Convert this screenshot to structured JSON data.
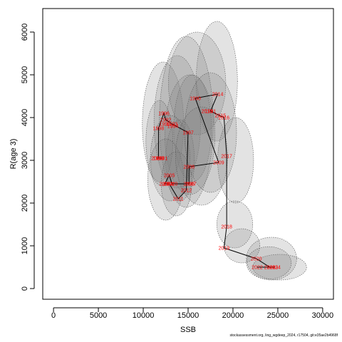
{
  "chart_data": {
    "type": "scatter",
    "xlabel": "SSB",
    "ylabel": "R(age 3)",
    "xlim": [
      -1200,
      31200
    ],
    "ylim": [
      -250,
      6550
    ],
    "xticks": [
      0,
      5000,
      10000,
      15000,
      20000,
      25000,
      30000
    ],
    "yticks": [
      0,
      1000,
      2000,
      3000,
      4000,
      5000,
      6000
    ],
    "grid": false,
    "points": [
      {
        "label": "1990",
        "x": 15800,
        "y": 4450
      },
      {
        "label": "1991",
        "x": 17500,
        "y": 4150
      },
      {
        "label": "1992",
        "x": 12500,
        "y": 3950
      },
      {
        "label": "1993",
        "x": 13200,
        "y": 3850
      },
      {
        "label": "1994",
        "x": 13300,
        "y": 3800
      },
      {
        "label": "1995",
        "x": 12400,
        "y": 3850
      },
      {
        "label": "1996",
        "x": 12300,
        "y": 4100
      },
      {
        "label": "1997",
        "x": 15000,
        "y": 3650
      },
      {
        "label": "1998",
        "x": 11700,
        "y": 3750
      },
      {
        "label": "1999",
        "x": 11700,
        "y": 3050
      },
      {
        "label": "2000",
        "x": 11500,
        "y": 3050
      },
      {
        "label": "2001",
        "x": 12100,
        "y": 3050
      },
      {
        "label": "2002",
        "x": 12900,
        "y": 2450
      },
      {
        "label": "2003",
        "x": 12400,
        "y": 2450
      },
      {
        "label": "2004",
        "x": 12700,
        "y": 2450
      },
      {
        "label": "2005",
        "x": 12900,
        "y": 2650
      },
      {
        "label": "2006",
        "x": 15100,
        "y": 2450
      },
      {
        "label": "2007",
        "x": 15300,
        "y": 2450
      },
      {
        "label": "2008",
        "x": 15100,
        "y": 2850
      },
      {
        "label": "2009",
        "x": 18400,
        "y": 2950
      },
      {
        "label": "2010",
        "x": 13200,
        "y": 2450
      },
      {
        "label": "2011",
        "x": 13900,
        "y": 2100
      },
      {
        "label": "2012",
        "x": 14800,
        "y": 2300
      },
      {
        "label": "2013",
        "x": 17100,
        "y": 4150
      },
      {
        "label": "2014",
        "x": 18300,
        "y": 4550
      },
      {
        "label": "2015",
        "x": 18600,
        "y": 4050
      },
      {
        "label": "2016",
        "x": 19000,
        "y": 4000
      },
      {
        "label": "2017",
        "x": 19300,
        "y": 3100
      },
      {
        "label": "2018",
        "x": 19300,
        "y": 1450
      },
      {
        "label": "2019",
        "x": 19000,
        "y": 950
      },
      {
        "label": "2020",
        "x": 22600,
        "y": 700
      },
      {
        "label": "2021",
        "x": 24100,
        "y": 500
      },
      {
        "label": "2022",
        "x": 22700,
        "y": 500
      },
      {
        "label": "2023",
        "x": 24400,
        "y": 500
      },
      {
        "label": "2024",
        "x": 24700,
        "y": 500
      }
    ],
    "trajectory": [
      [
        11500,
        3050
      ],
      [
        11700,
        3050
      ],
      [
        12100,
        3050
      ],
      [
        11700,
        3050
      ],
      [
        11700,
        3750
      ],
      [
        12300,
        4100
      ],
      [
        12500,
        3950
      ],
      [
        13200,
        3850
      ],
      [
        15000,
        3650
      ],
      [
        14800,
        2300
      ],
      [
        13900,
        2100
      ],
      [
        12900,
        2450
      ],
      [
        12400,
        2450
      ],
      [
        12900,
        2650
      ],
      [
        13200,
        2450
      ],
      [
        15100,
        2450
      ],
      [
        15100,
        2850
      ],
      [
        18400,
        2950
      ],
      [
        15800,
        4450
      ],
      [
        18300,
        4550
      ],
      [
        17500,
        4150
      ],
      [
        19000,
        4000
      ],
      [
        19300,
        3100
      ],
      [
        19300,
        1450
      ],
      [
        19000,
        950
      ],
      [
        22600,
        700
      ],
      [
        24100,
        500
      ],
      [
        22700,
        500
      ],
      [
        24400,
        500
      ],
      [
        24700,
        500
      ]
    ],
    "confidence_ellipses": [
      {
        "cx": 12200,
        "cy": 3850,
        "rx": 2300,
        "ry": 1450
      },
      {
        "cx": 13800,
        "cy": 3900,
        "rx": 2600,
        "ry": 1550
      },
      {
        "cx": 15200,
        "cy": 3600,
        "rx": 2800,
        "ry": 1400
      },
      {
        "cx": 16000,
        "cy": 4800,
        "rx": 3200,
        "ry": 1200
      },
      {
        "cx": 18200,
        "cy": 4850,
        "rx": 2300,
        "ry": 1400
      },
      {
        "cx": 15500,
        "cy": 3750,
        "rx": 2100,
        "ry": 1250
      },
      {
        "cx": 14100,
        "cy": 3000,
        "rx": 1600,
        "ry": 950
      },
      {
        "cx": 14800,
        "cy": 3900,
        "rx": 3000,
        "ry": 2000
      },
      {
        "cx": 11800,
        "cy": 3450,
        "rx": 1500,
        "ry": 950
      },
      {
        "cx": 13000,
        "cy": 3050,
        "rx": 2200,
        "ry": 1000
      },
      {
        "cx": 12500,
        "cy": 2550,
        "rx": 2000,
        "ry": 950
      },
      {
        "cx": 13700,
        "cy": 2450,
        "rx": 1700,
        "ry": 750
      },
      {
        "cx": 16500,
        "cy": 3100,
        "rx": 2900,
        "ry": 1150
      },
      {
        "cx": 20300,
        "cy": 3000,
        "rx": 2000,
        "ry": 1000
      },
      {
        "cx": 17500,
        "cy": 3650,
        "rx": 2900,
        "ry": 1400
      },
      {
        "cx": 20200,
        "cy": 1500,
        "rx": 2000,
        "ry": 550
      },
      {
        "cx": 21000,
        "cy": 1000,
        "rx": 2000,
        "ry": 400
      },
      {
        "cx": 24300,
        "cy": 700,
        "rx": 2800,
        "ry": 500
      },
      {
        "cx": 25200,
        "cy": 500,
        "rx": 3000,
        "ry": 300
      },
      {
        "cx": 24000,
        "cy": 600,
        "rx": 2500,
        "ry": 380
      }
    ]
  },
  "footnote": "stockassessment.org, ling_wgdeep_2024, r17504, git:e35ae2b4968f"
}
